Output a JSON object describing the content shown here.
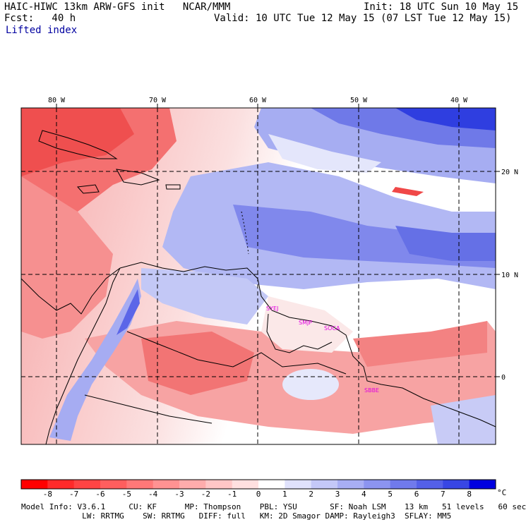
{
  "header": {
    "title": "HAIC-HIWC 13km ARW-GFS init   NCAR/MMM",
    "init": "Init: 18 UTC Sun 10 May 15",
    "fcst": "Fcst:   40 h",
    "valid": "Valid: 10 UTC Tue 12 May 15 (07 LST Tue 12 May 15)",
    "field": "Lifted index"
  },
  "map": {
    "lon_labels": [
      "80 W",
      "70 W",
      "60 W",
      "50 W",
      "40 W"
    ],
    "lat_labels": [
      "20 N",
      "10 N",
      "0"
    ],
    "sites": [
      "SYEJ",
      "SMJP",
      "SOCA",
      "SBBE"
    ],
    "colors": {
      "strong_neg": "#f04848",
      "neg": "#f7a0a0",
      "weak_neg": "#fcdcdc",
      "neutral": "#ffffff",
      "weak_pos": "#d8dcf8",
      "pos": "#8f98ee",
      "strong_pos": "#3040e0",
      "site_label": "#e000e0"
    }
  },
  "colorbar": {
    "labels": [
      "-8",
      "-7",
      "-6",
      "-5",
      "-4",
      "-3",
      "-2",
      "-1",
      "0",
      "1",
      "2",
      "3",
      "4",
      "5",
      "6",
      "7",
      "8"
    ],
    "unit": "°C",
    "colors": [
      "#ff0000",
      "#ff2a2a",
      "#ff4444",
      "#ff5e5e",
      "#ff7878",
      "#ff9292",
      "#ffacac",
      "#ffc6c6",
      "#ffe0e0",
      "#ffffff",
      "#e0e2fc",
      "#c4c8f8",
      "#a8aef4",
      "#8c94f0",
      "#707aec",
      "#5460e8",
      "#3846e4",
      "#0000e0"
    ]
  },
  "model_info": {
    "line1": "Model Info: V3.6.1     CU: KF      MP: Thompson    PBL: YSU       SF: Noah LSM    13 km   51 levels   60 sec",
    "line2": "             LW: RRTMG    SW: RRTMG   DIFF: full   KM: 2D Smagor DAMP: Rayleigh3  SFLAY: MM5"
  }
}
